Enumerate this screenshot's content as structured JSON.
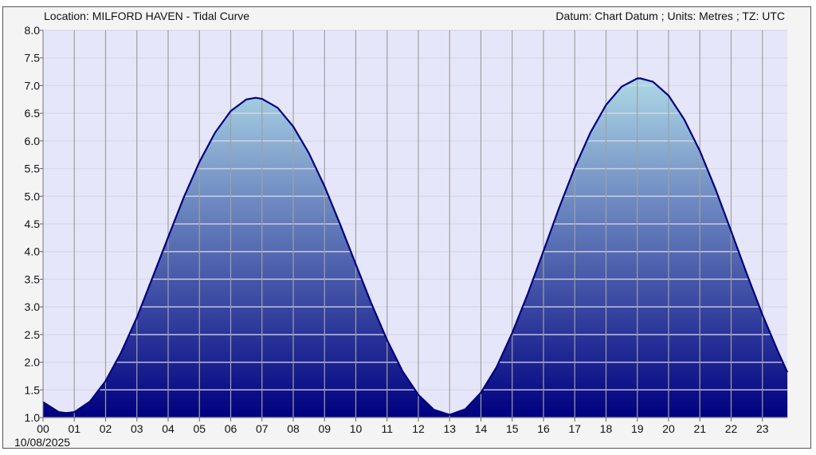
{
  "chart_data": {
    "type": "area",
    "title": "Location: MILFORD HAVEN - Tidal Curve",
    "subtitle": "Datum: Chart Datum ; Units: Metres ; TZ: UTC",
    "date_label": "10/08/2025",
    "xlabel": "",
    "ylabel": "",
    "xlim": [
      0,
      23.8
    ],
    "ylim": [
      1.0,
      8.0
    ],
    "grid": true,
    "x_ticks": [
      "00",
      "01",
      "02",
      "03",
      "04",
      "05",
      "06",
      "07",
      "08",
      "09",
      "10",
      "11",
      "12",
      "13",
      "14",
      "15",
      "16",
      "17",
      "18",
      "19",
      "20",
      "21",
      "22",
      "23"
    ],
    "y_ticks": [
      "1.0",
      "1.5",
      "2.0",
      "2.5",
      "3.0",
      "3.5",
      "4.0",
      "4.5",
      "5.0",
      "5.5",
      "6.0",
      "6.5",
      "7.0",
      "7.5",
      "8.0"
    ],
    "series": [
      {
        "x": [
          0,
          0.5,
          0.75,
          1,
          1.5,
          2,
          2.5,
          3,
          3.5,
          4,
          4.5,
          5,
          5.5,
          6,
          6.5,
          6.8,
          7,
          7.5,
          8,
          8.5,
          9,
          9.5,
          10,
          10.5,
          11,
          11.5,
          12,
          12.5,
          13,
          13.5,
          14,
          14.5,
          15,
          15.5,
          16,
          16.5,
          17,
          17.5,
          18,
          18.5,
          19,
          19.1,
          19.5,
          20,
          20.5,
          21,
          21.5,
          22,
          22.5,
          23,
          23.5,
          23.8
        ],
        "y": [
          1.28,
          1.1,
          1.08,
          1.1,
          1.29,
          1.66,
          2.18,
          2.81,
          3.53,
          4.26,
          4.98,
          5.62,
          6.15,
          6.54,
          6.75,
          6.78,
          6.76,
          6.6,
          6.26,
          5.78,
          5.18,
          4.49,
          3.77,
          3.06,
          2.4,
          1.83,
          1.41,
          1.14,
          1.05,
          1.15,
          1.45,
          1.91,
          2.53,
          3.24,
          4.01,
          4.79,
          5.52,
          6.15,
          6.65,
          6.98,
          7.13,
          7.13,
          7.07,
          6.82,
          6.39,
          5.82,
          5.13,
          4.37,
          3.6,
          2.86,
          2.19,
          1.82
        ]
      }
    ],
    "colors": {
      "plot_bg": "#e6e6fa",
      "line": "#000080",
      "fill_top": "#add8e6",
      "fill_bottom": "#000080",
      "grid_v": "#a0a0a0",
      "grid_h": "#d8d8e8"
    }
  }
}
